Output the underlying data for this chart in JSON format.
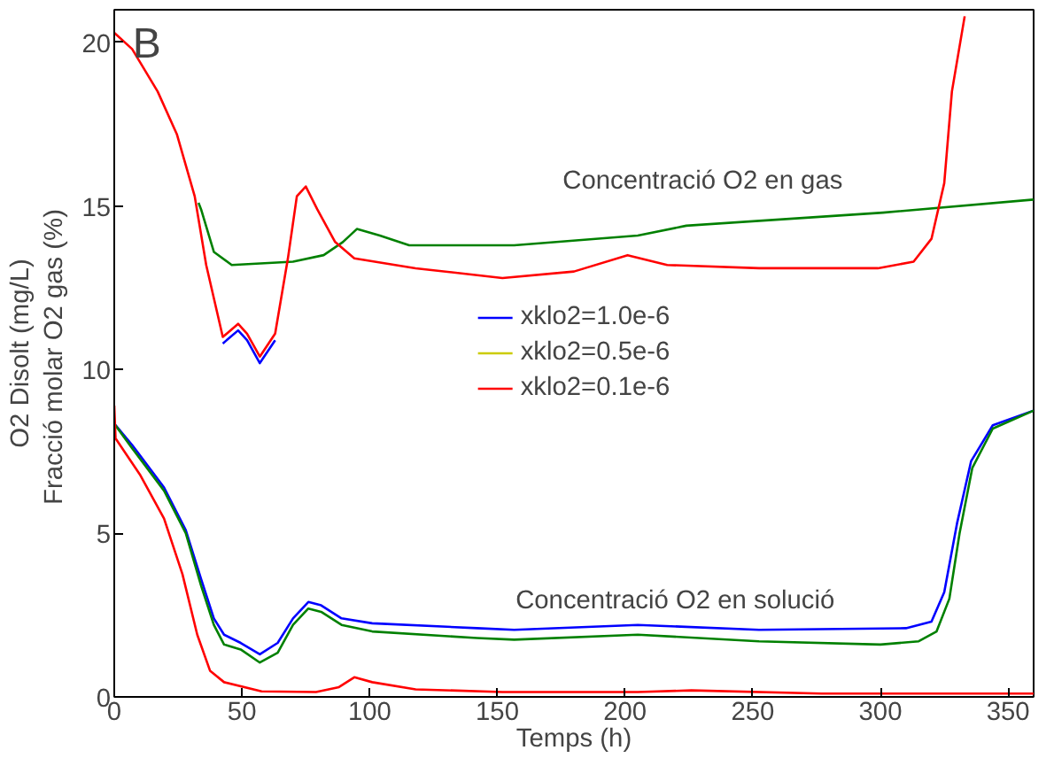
{
  "chart_data": {
    "type": "line",
    "xlabel": "Temps (h)",
    "ylabel": "O2 Disolt (mg/L)\nFracció molar O2  gas (%)",
    "xlim": [
      0,
      360
    ],
    "ylim": [
      0,
      21
    ],
    "xticks": [
      0,
      50,
      100,
      150,
      200,
      250,
      300,
      350
    ],
    "yticks": [
      0,
      5,
      10,
      15,
      20
    ],
    "grid": false,
    "legend": "center",
    "marker": "none",
    "line_style": "solid",
    "annotations": [
      "B",
      "Concentració O2 en gas",
      "Concentració O2 en solució"
    ],
    "series": [
      {
        "name": "xklo2=1.0e-6",
        "color": "#0000ff",
        "x": [
          42.5,
          48.5,
          52,
          57,
          63
        ],
        "values": [
          10.8,
          11.2,
          10.9,
          10.2,
          10.9
        ]
      },
      {
        "color": "#0000ff",
        "x": [
          0,
          7,
          19.5,
          28,
          34,
          39,
          43,
          49.5,
          57,
          64,
          70,
          76,
          81,
          89,
          101,
          142,
          156.6,
          205,
          252.5,
          310,
          320,
          325,
          330,
          335.5,
          344,
          360
        ],
        "values": [
          8.35,
          7.7,
          6.4,
          5.1,
          3.6,
          2.4,
          1.9,
          1.65,
          1.3,
          1.65,
          2.4,
          2.9,
          2.8,
          2.4,
          2.25,
          2.1,
          2.05,
          2.2,
          2.05,
          2.1,
          2.3,
          3.2,
          5.3,
          7.2,
          8.3,
          8.75
        ]
      },
      {
        "name": "xklo2=0.5e-6",
        "color": "#cccc00"
      },
      {
        "name": "xklo2=0.1e-6",
        "color": "#ff0000",
        "x": [
          0,
          7,
          17,
          24.5,
          31.5,
          36,
          42.5,
          48.5,
          52,
          57,
          63,
          68,
          71.5,
          75,
          79.5,
          86.5,
          94,
          118,
          152,
          180,
          201,
          216.5,
          252.5,
          299,
          313,
          320,
          325,
          328,
          333
        ],
        "values": [
          20.3,
          19.8,
          18.5,
          17.2,
          15.3,
          13.2,
          11.0,
          11.4,
          11.1,
          10.4,
          11.1,
          13.4,
          15.3,
          15.6,
          14.9,
          13.9,
          13.4,
          13.1,
          12.8,
          13.0,
          13.5,
          13.2,
          13.1,
          13.1,
          13.3,
          14.0,
          15.7,
          18.5,
          20.8
        ]
      },
      {
        "color": "#ff0000",
        "x": [
          0,
          0.5,
          10,
          19.5,
          26.7,
          32.5,
          37.5,
          43,
          57.7,
          79,
          88,
          94,
          101,
          118,
          152,
          205,
          226,
          277,
          360
        ],
        "values": [
          8.9,
          7.9,
          6.8,
          5.45,
          3.75,
          1.9,
          0.8,
          0.45,
          0.17,
          0.15,
          0.3,
          0.6,
          0.45,
          0.23,
          0.15,
          0.15,
          0.2,
          0.1,
          0.1
        ]
      },
      {
        "color": "#008000",
        "x": [
          33,
          34,
          39,
          46,
          70,
          82,
          89.5,
          95,
          104,
          115.5,
          147,
          156.6,
          205,
          224,
          301,
          360
        ],
        "values": [
          15.1,
          14.9,
          13.6,
          13.2,
          13.3,
          13.5,
          13.9,
          14.3,
          14.1,
          13.8,
          13.8,
          13.8,
          14.1,
          14.4,
          14.8,
          15.2
        ]
      },
      {
        "color": "#008000",
        "x": [
          0,
          7,
          19.5,
          28,
          34,
          39,
          43,
          49.5,
          57,
          64,
          70,
          76,
          81,
          89,
          101,
          142,
          156.6,
          205,
          252.5,
          300,
          315,
          322,
          327,
          331,
          336,
          344,
          360
        ],
        "values": [
          8.35,
          7.6,
          6.3,
          5.0,
          3.4,
          2.2,
          1.6,
          1.45,
          1.05,
          1.35,
          2.2,
          2.7,
          2.6,
          2.2,
          2.0,
          1.8,
          1.75,
          1.9,
          1.7,
          1.6,
          1.7,
          2.0,
          3.0,
          5.0,
          7.0,
          8.2,
          8.75
        ]
      }
    ]
  }
}
